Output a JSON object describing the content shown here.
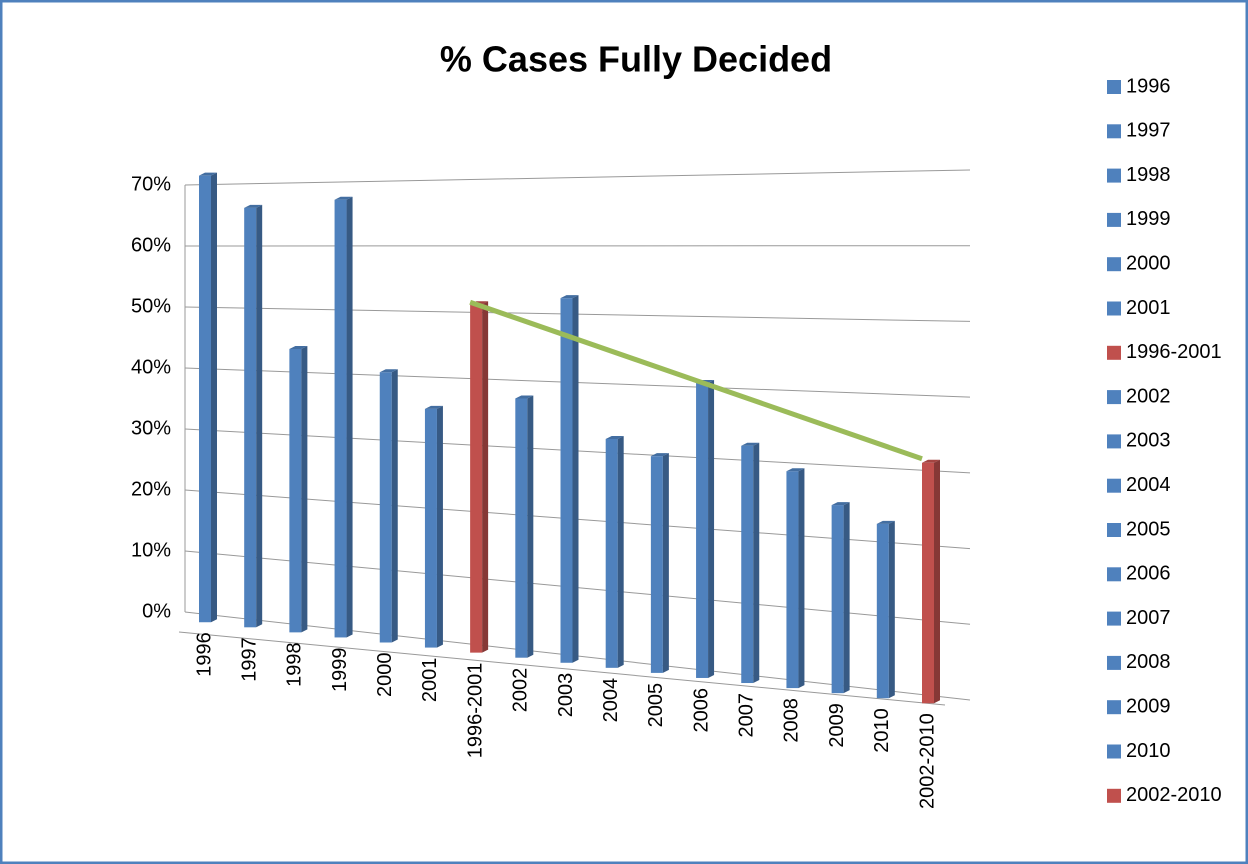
{
  "chart_data": {
    "type": "bar",
    "title": "% Cases  Fully Decided",
    "categories": [
      "1996",
      "1997",
      "1998",
      "1999",
      "2000",
      "2001",
      "1996-2001",
      "2002",
      "2003",
      "2004",
      "2005",
      "2006",
      "2007",
      "2008",
      "2009",
      "2010",
      "2002-2010"
    ],
    "values": [
      68,
      63,
      42,
      64,
      39,
      34,
      49,
      36,
      50,
      31,
      29,
      39,
      31,
      28,
      24,
      22,
      30
    ],
    "colors": [
      "#4f81bd",
      "#4f81bd",
      "#4f81bd",
      "#4f81bd",
      "#4f81bd",
      "#4f81bd",
      "#c0504d",
      "#4f81bd",
      "#4f81bd",
      "#4f81bd",
      "#4f81bd",
      "#4f81bd",
      "#4f81bd",
      "#4f81bd",
      "#4f81bd",
      "#4f81bd",
      "#c0504d"
    ],
    "ylim": [
      0,
      70
    ],
    "yticks": [
      {
        "value": 0,
        "label": "0%"
      },
      {
        "value": 10,
        "label": "10%"
      },
      {
        "value": 20,
        "label": "20%"
      },
      {
        "value": 30,
        "label": "30%"
      },
      {
        "value": 40,
        "label": "40%"
      },
      {
        "value": 50,
        "label": "50%"
      },
      {
        "value": 60,
        "label": "60%"
      },
      {
        "value": 70,
        "label": "70%"
      }
    ],
    "grid": true,
    "legend": "right",
    "trendline_color": "#9bbb59"
  }
}
